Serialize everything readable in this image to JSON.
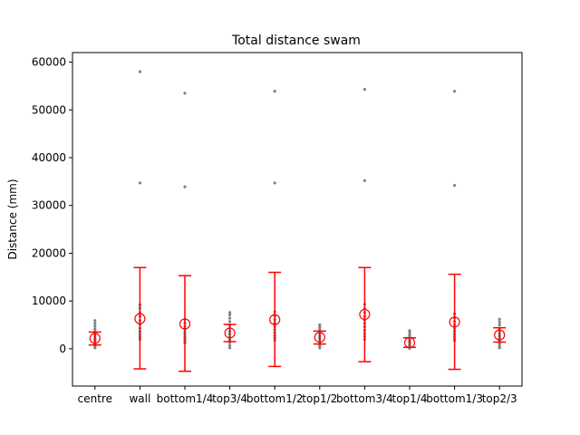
{
  "chart_data": {
    "type": "scatter",
    "title": "Total distance swam",
    "xlabel": "",
    "ylabel": "Distance (mm)",
    "ylim": [
      -7800,
      62000
    ],
    "yticks": [
      0,
      10000,
      20000,
      30000,
      40000,
      50000,
      60000
    ],
    "categories": [
      "centre",
      "wall",
      "bottom1/4",
      "top3/4",
      "bottom1/2",
      "top1/2",
      "bottom3/4",
      "top1/4",
      "bottom1/3",
      "top2/3"
    ],
    "summary": {
      "mean": [
        2200,
        6300,
        5200,
        3300,
        6100,
        2400,
        7200,
        1300,
        5600,
        2900
      ],
      "lower": [
        800,
        -4200,
        -4700,
        1500,
        -3700,
        1000,
        -2700,
        300,
        -4300,
        1400
      ],
      "upper": [
        3500,
        17000,
        15300,
        5100,
        16000,
        3700,
        17000,
        2300,
        15600,
        4400
      ]
    },
    "points": [
      [
        200,
        600,
        900,
        1300,
        1700,
        2000,
        2400,
        2800,
        3200,
        3600,
        4100,
        4700,
        5300,
        5900
      ],
      [
        2000,
        2500,
        3000,
        3600,
        4300,
        5100,
        5900,
        6800,
        7600,
        8500,
        9200,
        34700,
        58000
      ],
      [
        1200,
        1600,
        2000,
        2500,
        3000,
        3500,
        4100,
        4700,
        5400,
        6200,
        33900,
        53500
      ],
      [
        200,
        700,
        1300,
        1900,
        2500,
        3100,
        3700,
        4300,
        5000,
        5700,
        6400,
        7100,
        7600
      ],
      [
        1800,
        2300,
        2800,
        3400,
        4000,
        4700,
        5400,
        6100,
        6900,
        7700,
        34700,
        53900
      ],
      [
        200,
        600,
        1000,
        1500,
        2000,
        2500,
        3000,
        3500,
        4000,
        4500,
        5000
      ],
      [
        2000,
        2600,
        3200,
        3900,
        4600,
        5300,
        6000,
        6800,
        7600,
        8400,
        9300,
        35200,
        54300
      ],
      [
        100,
        300,
        600,
        900,
        1200,
        1500,
        1800,
        2100,
        2400,
        2800,
        3300,
        3800
      ],
      [
        1700,
        2100,
        2600,
        3100,
        3700,
        4300,
        5000,
        5700,
        6500,
        7300,
        34200,
        53900
      ],
      [
        200,
        600,
        1100,
        1600,
        2100,
        2600,
        3100,
        3700,
        4300,
        5000,
        5600,
        6200
      ]
    ],
    "colors": {
      "points": "#808080",
      "summary": "#ff0000",
      "axes": "#000000"
    },
    "grid": false,
    "legend": "none"
  }
}
